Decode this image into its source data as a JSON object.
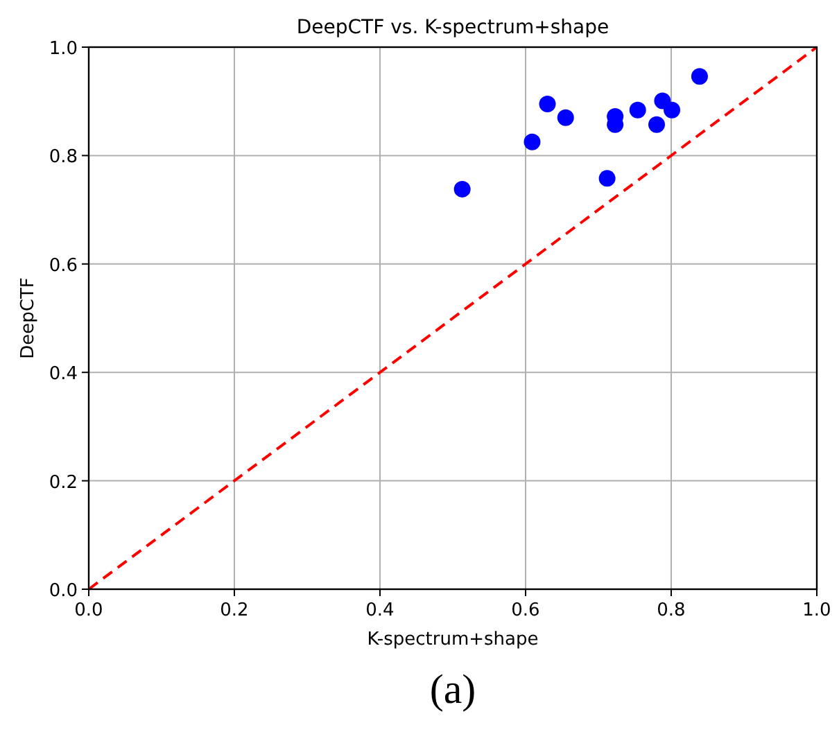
{
  "chart_data": {
    "type": "scatter",
    "title": "DeepCTF vs. K-spectrum+shape",
    "xlabel": "K-spectrum+shape",
    "ylabel": "DeepCTF",
    "annotations": [
      "(a)"
    ],
    "x": [
      0.513,
      0.609,
      0.63,
      0.655,
      0.712,
      0.723,
      0.723,
      0.754,
      0.78,
      0.788,
      0.801,
      0.839
    ],
    "series": [
      {
        "color": "#0000ff",
        "marker": "circle",
        "values": [
          0.738,
          0.825,
          0.895,
          0.87,
          0.758,
          0.872,
          0.857,
          0.884,
          0.857,
          0.901,
          0.884,
          0.946
        ]
      },
      {
        "type": "line",
        "color": "#ff0000",
        "line_style": "dashed",
        "x": [
          0,
          1
        ],
        "values": [
          0,
          1
        ]
      }
    ],
    "xlim": [
      0,
      1
    ],
    "ylim": [
      0,
      1
    ],
    "xticks": [
      {
        "value": 0,
        "label": "0.0"
      },
      {
        "value": 0.2,
        "label": "0.2"
      },
      {
        "value": 0.4,
        "label": "0.4"
      },
      {
        "value": 0.6,
        "label": "0.6"
      },
      {
        "value": 0.8,
        "label": "0.8"
      },
      {
        "value": 1,
        "label": "1.0"
      }
    ],
    "yticks": [
      {
        "value": 0,
        "label": "0.0"
      },
      {
        "value": 0.2,
        "label": "0.2"
      },
      {
        "value": 0.4,
        "label": "0.4"
      },
      {
        "value": 0.6,
        "label": "0.6"
      },
      {
        "value": 0.8,
        "label": "0.8"
      },
      {
        "value": 1,
        "label": "1.0"
      }
    ],
    "grid": true
  }
}
